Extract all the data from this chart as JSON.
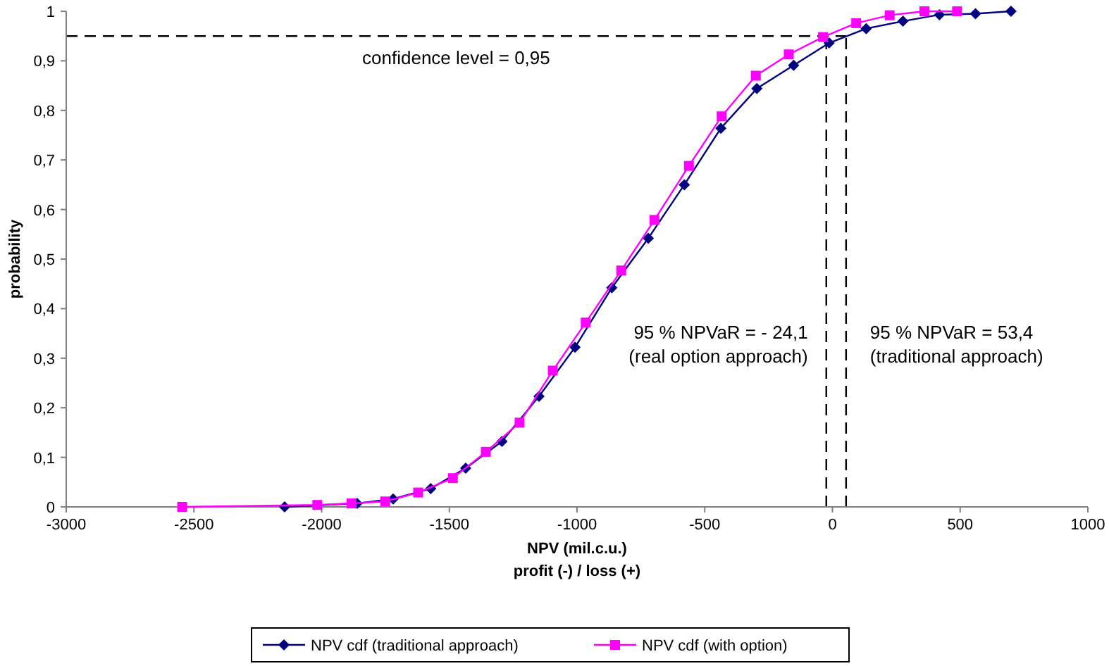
{
  "chart_data": {
    "type": "line",
    "xlabel": "NPV (mil.c.u.)\nprofit (-) / loss (+)",
    "ylabel": "probability",
    "xlim": [
      -3000,
      1000
    ],
    "xticks": [
      -3000,
      -2500,
      -2000,
      -1500,
      -1000,
      -500,
      0,
      500,
      1000
    ],
    "ylim": [
      0,
      1
    ],
    "yticks": [
      {
        "value": 0,
        "label": "0"
      },
      {
        "value": 0.1,
        "label": "0,1"
      },
      {
        "value": 0.2,
        "label": "0,2"
      },
      {
        "value": 0.3,
        "label": "0,3"
      },
      {
        "value": 0.4,
        "label": "0,4"
      },
      {
        "value": 0.5,
        "label": "0,5"
      },
      {
        "value": 0.6,
        "label": "0,6"
      },
      {
        "value": 0.7,
        "label": "0,7"
      },
      {
        "value": 0.8,
        "label": "0,8"
      },
      {
        "value": 0.9,
        "label": "0,9"
      },
      {
        "value": 1,
        "label": "1"
      }
    ],
    "grid": false,
    "legend": "bottom",
    "line_style": "solid",
    "series": [
      {
        "name": "NPV cdf (traditional approach)",
        "color": "#000080",
        "marker": "diamond",
        "x": [
          -2145,
          -1861,
          -1720,
          -1573,
          -1436,
          -1294,
          -1149,
          -1008,
          -864,
          -721,
          -580,
          -437,
          -296,
          -152,
          -13,
          132,
          276,
          419,
          560,
          699
        ],
        "values": [
          0,
          0.007,
          0.016,
          0.037,
          0.078,
          0.132,
          0.223,
          0.322,
          0.442,
          0.542,
          0.65,
          0.764,
          0.844,
          0.891,
          0.936,
          0.965,
          0.98,
          0.993,
          0.995,
          1
        ]
      },
      {
        "name": "NPV cdf (with option)",
        "color": "#ff00ff",
        "marker": "square",
        "x": [
          -2546,
          -2017,
          -1883,
          -1751,
          -1622,
          -1486,
          -1357,
          -1225,
          -1095,
          -966,
          -827,
          -697,
          -562,
          -434,
          -300,
          -171,
          -37,
          93,
          224,
          360,
          488
        ],
        "values": [
          0,
          0.004,
          0.007,
          0.011,
          0.029,
          0.058,
          0.111,
          0.17,
          0.275,
          0.372,
          0.477,
          0.579,
          0.688,
          0.788,
          0.87,
          0.913,
          0.948,
          0.976,
          0.992,
          1,
          1
        ]
      }
    ],
    "ref_lines": [
      {
        "axis": "y",
        "value": 0.95,
        "color": "#000000",
        "line_style": "dashed",
        "label": "confidence level = 0,95"
      },
      {
        "axis": "x",
        "value": -24.1,
        "color": "#000000",
        "line_style": "dashed",
        "label": "95 % NPVaR = - 24,1\n(real option approach)"
      },
      {
        "axis": "x",
        "value": 53.4,
        "color": "#000000",
        "line_style": "dashed",
        "label": "95 % NPVaR = 53,4\n(traditional approach)"
      }
    ]
  }
}
